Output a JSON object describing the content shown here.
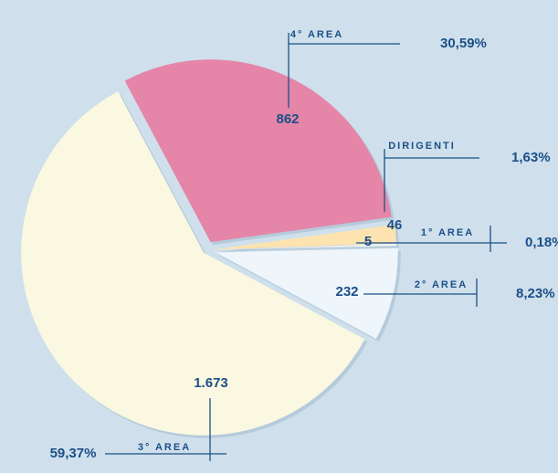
{
  "chart_data": {
    "type": "pie",
    "categories": [
      "4° AREA",
      "DIRIGENTI",
      "1° AREA",
      "2° AREA",
      "3° AREA"
    ],
    "values": [
      862,
      46,
      5,
      232,
      1673
    ],
    "value_labels": [
      "862",
      "46",
      "5",
      "232",
      "1.673"
    ],
    "percent_labels": [
      "30,59%",
      "1,63%",
      "0,18%",
      "8,23%",
      "59,37%"
    ],
    "colors": [
      "#e585a8",
      "#fde3b0",
      "#f7f7f2",
      "#eef5fb",
      "#fbf8e1"
    ]
  }
}
